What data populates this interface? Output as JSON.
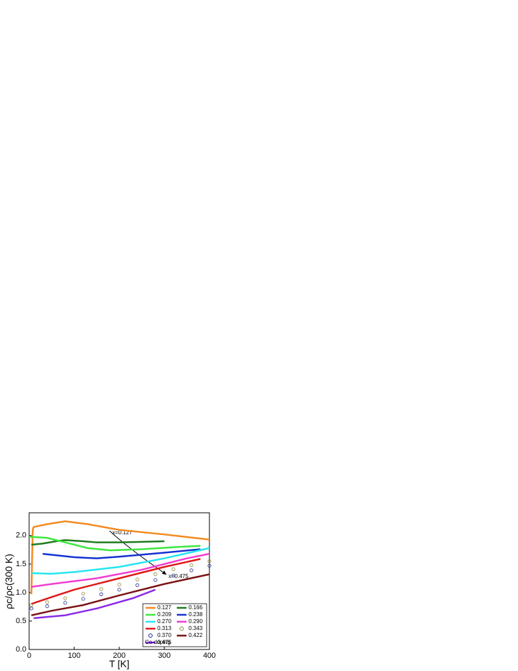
{
  "chart_data": {
    "type": "line",
    "xlabel": "T [K]",
    "ylabel": "ρc/ρc(300 K)",
    "xlim": [
      0,
      400
    ],
    "xticks": [
      0,
      100,
      200,
      300,
      400
    ],
    "ylim": [
      0,
      2.4
    ],
    "yticks": [
      {
        "value": 0,
        "label": "0.0"
      },
      0.5,
      {
        "value": 1,
        "label": "1.0"
      },
      1.5,
      {
        "value": 2,
        "label": "2.0"
      }
    ],
    "annotations": [
      "x=0.127",
      "x=0.475"
    ],
    "legend_note": "Co-doping",
    "series": [
      {
        "name": "0.127",
        "color": "#f28a1e",
        "x": [
          5,
          8,
          10,
          40,
          80,
          130,
          200,
          300,
          400
        ],
        "values": [
          0.97,
          2.1,
          2.15,
          2.2,
          2.25,
          2.2,
          2.1,
          2.02,
          1.93
        ]
      },
      {
        "name": "0.166",
        "color": "#1e7a1e",
        "x": [
          5,
          30,
          60,
          80,
          120,
          150,
          200,
          250,
          300
        ],
        "values": [
          1.84,
          1.86,
          1.9,
          1.92,
          1.9,
          1.88,
          1.88,
          1.89,
          1.9
        ]
      },
      {
        "name": "0.209",
        "color": "#3ee63e",
        "x": [
          0,
          40,
          80,
          130,
          180,
          250,
          330,
          380
        ],
        "values": [
          1.98,
          1.96,
          1.88,
          1.78,
          1.74,
          1.76,
          1.8,
          1.82
        ]
      },
      {
        "name": "0.238",
        "color": "#1432d2",
        "x": [
          30,
          100,
          150,
          200,
          300,
          380
        ],
        "values": [
          1.68,
          1.62,
          1.6,
          1.63,
          1.7,
          1.76
        ]
      },
      {
        "name": "0.270",
        "color": "#22e6f0",
        "x": [
          5,
          50,
          100,
          200,
          300,
          400
        ],
        "values": [
          1.34,
          1.33,
          1.36,
          1.45,
          1.6,
          1.78
        ]
      },
      {
        "name": "0.290",
        "color": "#f03cd2",
        "x": [
          5,
          50,
          150,
          250,
          350,
          400
        ],
        "values": [
          1.1,
          1.15,
          1.25,
          1.4,
          1.6,
          1.68
        ]
      },
      {
        "name": "0.313",
        "color": "#e01818",
        "x": [
          5,
          50,
          100,
          200,
          300,
          380
        ],
        "values": [
          0.8,
          0.92,
          1.05,
          1.25,
          1.45,
          1.59
        ]
      },
      {
        "name": "0.343",
        "color": "#8a8a3a",
        "marker": "circle",
        "x": [
          5,
          40,
          80,
          120,
          160,
          200,
          240,
          280,
          320,
          360,
          400
        ],
        "values": [
          0.78,
          0.83,
          0.9,
          0.98,
          1.06,
          1.14,
          1.23,
          1.32,
          1.41,
          1.48,
          1.55
        ]
      },
      {
        "name": "0.370",
        "color": "#1e2a8a",
        "marker": "circle",
        "x": [
          5,
          40,
          80,
          120,
          160,
          200,
          240,
          280,
          320,
          360,
          400
        ],
        "values": [
          0.72,
          0.76,
          0.82,
          0.89,
          0.97,
          1.05,
          1.13,
          1.22,
          1.3,
          1.39,
          1.47
        ]
      },
      {
        "name": "0.422",
        "color": "#7a1414",
        "x": [
          5,
          50,
          120,
          200,
          300,
          400
        ],
        "values": [
          0.6,
          0.68,
          0.78,
          0.95,
          1.15,
          1.32
        ]
      },
      {
        "name": "0.475",
        "color": "#8a2be6",
        "x": [
          10,
          80,
          150,
          230,
          280
        ],
        "values": [
          0.55,
          0.6,
          0.72,
          0.9,
          1.05
        ]
      }
    ]
  }
}
